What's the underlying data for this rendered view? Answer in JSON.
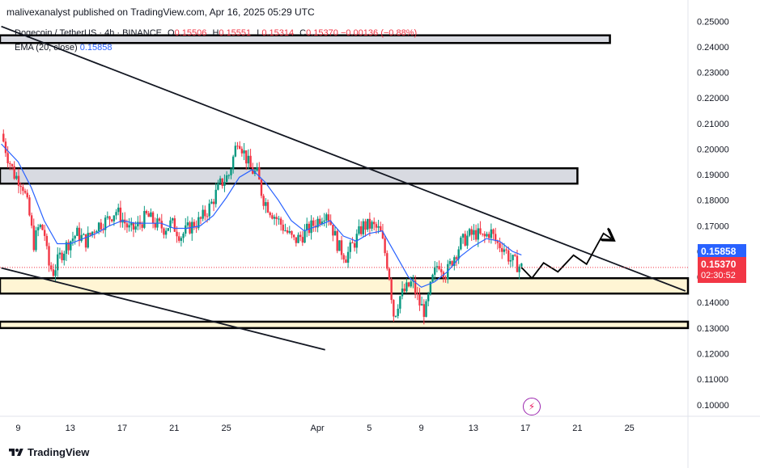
{
  "header": {
    "publish_text": "malivexanalyst published on TradingView.com, Apr 16, 2025 05:29 UTC",
    "symbol": "Dogecoin / TetherUS · 4h · BINANCE",
    "ohlc": [
      {
        "k": "O",
        "v": "0.15506"
      },
      {
        "k": "H",
        "v": "0.15551"
      },
      {
        "k": "L",
        "v": "0.15314"
      },
      {
        "k": "C",
        "v": "0.15370"
      },
      {
        "k": "",
        "v": "−0.00136 (−0.88%)"
      }
    ],
    "ema_label": "EMA (20, close)",
    "ema_value": "0.15858"
  },
  "price_tags": {
    "ema": "0.15858",
    "last": "0.15370",
    "countdown": "02:30:52"
  },
  "footer": {
    "brand": "TradingView"
  },
  "icons": [
    "tradingview-logo-icon",
    "bolt-icon"
  ],
  "colors": {
    "up": "#089981",
    "down": "#f23645",
    "ema": "#2962ff",
    "zone_gray": "#d1d4dc",
    "zone_yellow": "#fff3cc",
    "trendline": "#131722"
  },
  "chart_data": {
    "type": "candlestick",
    "title": "Dogecoin / TetherUS · 4h · BINANCE",
    "y_ticks": [
      "0.10000",
      "0.11000",
      "0.12000",
      "0.13000",
      "0.14000",
      "0.15000",
      "0.16000",
      "0.17000",
      "0.18000",
      "0.19000",
      "0.20000",
      "0.21000",
      "0.22000",
      "0.23000",
      "0.24000",
      "0.25000"
    ],
    "ylim": [
      0.0955,
      0.252
    ],
    "x_ticks": [
      "9",
      "13",
      "17",
      "21",
      "25",
      "Apr",
      "5",
      "9",
      "13",
      "17",
      "21",
      "25"
    ],
    "x_tick_days": [
      0,
      4,
      8,
      12,
      16,
      23,
      27,
      31,
      35,
      39,
      43,
      47
    ],
    "xlim_days": [
      -1.4,
      51.5
    ],
    "price_path": [
      [
        -1.3,
        0.206
      ],
      [
        -0.8,
        0.197
      ],
      [
        -0.3,
        0.19
      ],
      [
        0.3,
        0.187
      ],
      [
        0.8,
        0.176
      ],
      [
        1.2,
        0.163
      ],
      [
        1.6,
        0.17
      ],
      [
        2.0,
        0.168
      ],
      [
        2.3,
        0.155
      ],
      [
        2.7,
        0.152
      ],
      [
        3.2,
        0.158
      ],
      [
        3.8,
        0.163
      ],
      [
        4.5,
        0.167
      ],
      [
        5.2,
        0.164
      ],
      [
        6.0,
        0.17
      ],
      [
        6.8,
        0.172
      ],
      [
        7.5,
        0.176
      ],
      [
        8.1,
        0.172
      ],
      [
        8.6,
        0.168
      ],
      [
        9.2,
        0.17
      ],
      [
        9.9,
        0.174
      ],
      [
        10.5,
        0.171
      ],
      [
        11.2,
        0.169
      ],
      [
        11.8,
        0.171
      ],
      [
        12.5,
        0.166
      ],
      [
        13.3,
        0.17
      ],
      [
        14.0,
        0.172
      ],
      [
        14.8,
        0.178
      ],
      [
        15.5,
        0.186
      ],
      [
        16.2,
        0.19
      ],
      [
        16.6,
        0.198
      ],
      [
        16.9,
        0.205
      ],
      [
        17.4,
        0.198
      ],
      [
        17.9,
        0.192
      ],
      [
        18.4,
        0.19
      ],
      [
        18.8,
        0.181
      ],
      [
        19.4,
        0.176
      ],
      [
        20.0,
        0.172
      ],
      [
        20.6,
        0.168
      ],
      [
        21.2,
        0.164
      ],
      [
        21.8,
        0.166
      ],
      [
        22.4,
        0.169
      ],
      [
        23.0,
        0.172
      ],
      [
        23.7,
        0.176
      ],
      [
        24.1,
        0.17
      ],
      [
        24.6,
        0.162
      ],
      [
        25.2,
        0.158
      ],
      [
        25.8,
        0.163
      ],
      [
        26.5,
        0.17
      ],
      [
        27.2,
        0.17
      ],
      [
        27.8,
        0.168
      ],
      [
        28.1,
        0.162
      ],
      [
        28.5,
        0.152
      ],
      [
        28.9,
        0.134
      ],
      [
        29.3,
        0.142
      ],
      [
        29.8,
        0.145
      ],
      [
        30.3,
        0.148
      ],
      [
        30.8,
        0.14
      ],
      [
        31.3,
        0.136
      ],
      [
        31.8,
        0.148
      ],
      [
        32.3,
        0.156
      ],
      [
        32.9,
        0.151
      ],
      [
        33.4,
        0.157
      ],
      [
        34.0,
        0.163
      ],
      [
        34.6,
        0.166
      ],
      [
        35.2,
        0.167
      ],
      [
        35.8,
        0.165
      ],
      [
        36.3,
        0.168
      ],
      [
        36.8,
        0.163
      ],
      [
        37.3,
        0.162
      ],
      [
        37.8,
        0.157
      ],
      [
        38.3,
        0.155
      ],
      [
        38.7,
        0.1537
      ]
    ],
    "ema20_path": [
      [
        -1.3,
        0.202
      ],
      [
        0.0,
        0.195
      ],
      [
        1.0,
        0.185
      ],
      [
        2.0,
        0.172
      ],
      [
        3.0,
        0.163
      ],
      [
        4.0,
        0.163
      ],
      [
        5.0,
        0.165
      ],
      [
        6.0,
        0.167
      ],
      [
        7.0,
        0.17
      ],
      [
        8.0,
        0.172
      ],
      [
        9.0,
        0.171
      ],
      [
        10.0,
        0.171
      ],
      [
        11.0,
        0.171
      ],
      [
        12.0,
        0.169
      ],
      [
        13.0,
        0.169
      ],
      [
        14.0,
        0.17
      ],
      [
        15.0,
        0.174
      ],
      [
        16.0,
        0.181
      ],
      [
        17.0,
        0.189
      ],
      [
        18.0,
        0.192
      ],
      [
        19.0,
        0.187
      ],
      [
        20.0,
        0.18
      ],
      [
        21.0,
        0.172
      ],
      [
        22.0,
        0.168
      ],
      [
        23.0,
        0.17
      ],
      [
        24.0,
        0.172
      ],
      [
        25.0,
        0.166
      ],
      [
        26.0,
        0.164
      ],
      [
        27.0,
        0.167
      ],
      [
        28.0,
        0.168
      ],
      [
        29.0,
        0.159
      ],
      [
        30.0,
        0.15
      ],
      [
        31.0,
        0.146
      ],
      [
        32.0,
        0.148
      ],
      [
        33.0,
        0.152
      ],
      [
        34.0,
        0.158
      ],
      [
        35.0,
        0.162
      ],
      [
        36.0,
        0.165
      ],
      [
        37.0,
        0.164
      ],
      [
        38.0,
        0.16
      ],
      [
        38.7,
        0.1586
      ]
    ],
    "zones": [
      {
        "name": "upper-resistance-zone",
        "ymin": 0.1865,
        "ymax": 0.1925,
        "fill": "#d1d4dc",
        "x_start": -1.4,
        "x_end": 43.0
      },
      {
        "name": "top-zone",
        "ymin": 0.2415,
        "ymax": 0.2445,
        "fill": "#d1d4dc",
        "x_start": -1.4,
        "x_end": 45.5
      },
      {
        "name": "support-zone",
        "ymin": 0.1435,
        "ymax": 0.1495,
        "fill": "#fff3cc",
        "x_start": -1.4,
        "x_end": 51.5
      },
      {
        "name": "lower-support-zone",
        "ymin": 0.13,
        "ymax": 0.1325,
        "fill": "#fff3cc",
        "x_start": -1.4,
        "x_end": 51.5
      }
    ],
    "trendlines": [
      {
        "name": "descending-resistance-line",
        "points": [
          [
            -1.3,
            0.248
          ],
          [
            51.3,
            0.1445
          ]
        ]
      },
      {
        "name": "descending-support-line",
        "points": [
          [
            -1.3,
            0.1535
          ],
          [
            23.6,
            0.1215
          ]
        ]
      }
    ],
    "projection_path": [
      [
        38.7,
        0.1537
      ],
      [
        39.5,
        0.1495
      ],
      [
        40.4,
        0.1555
      ],
      [
        41.5,
        0.152
      ],
      [
        42.7,
        0.1585
      ],
      [
        43.7,
        0.155
      ],
      [
        45.0,
        0.167
      ],
      [
        45.6,
        0.165
      ]
    ],
    "current_price": 0.1537,
    "ema_last": 0.15858
  }
}
